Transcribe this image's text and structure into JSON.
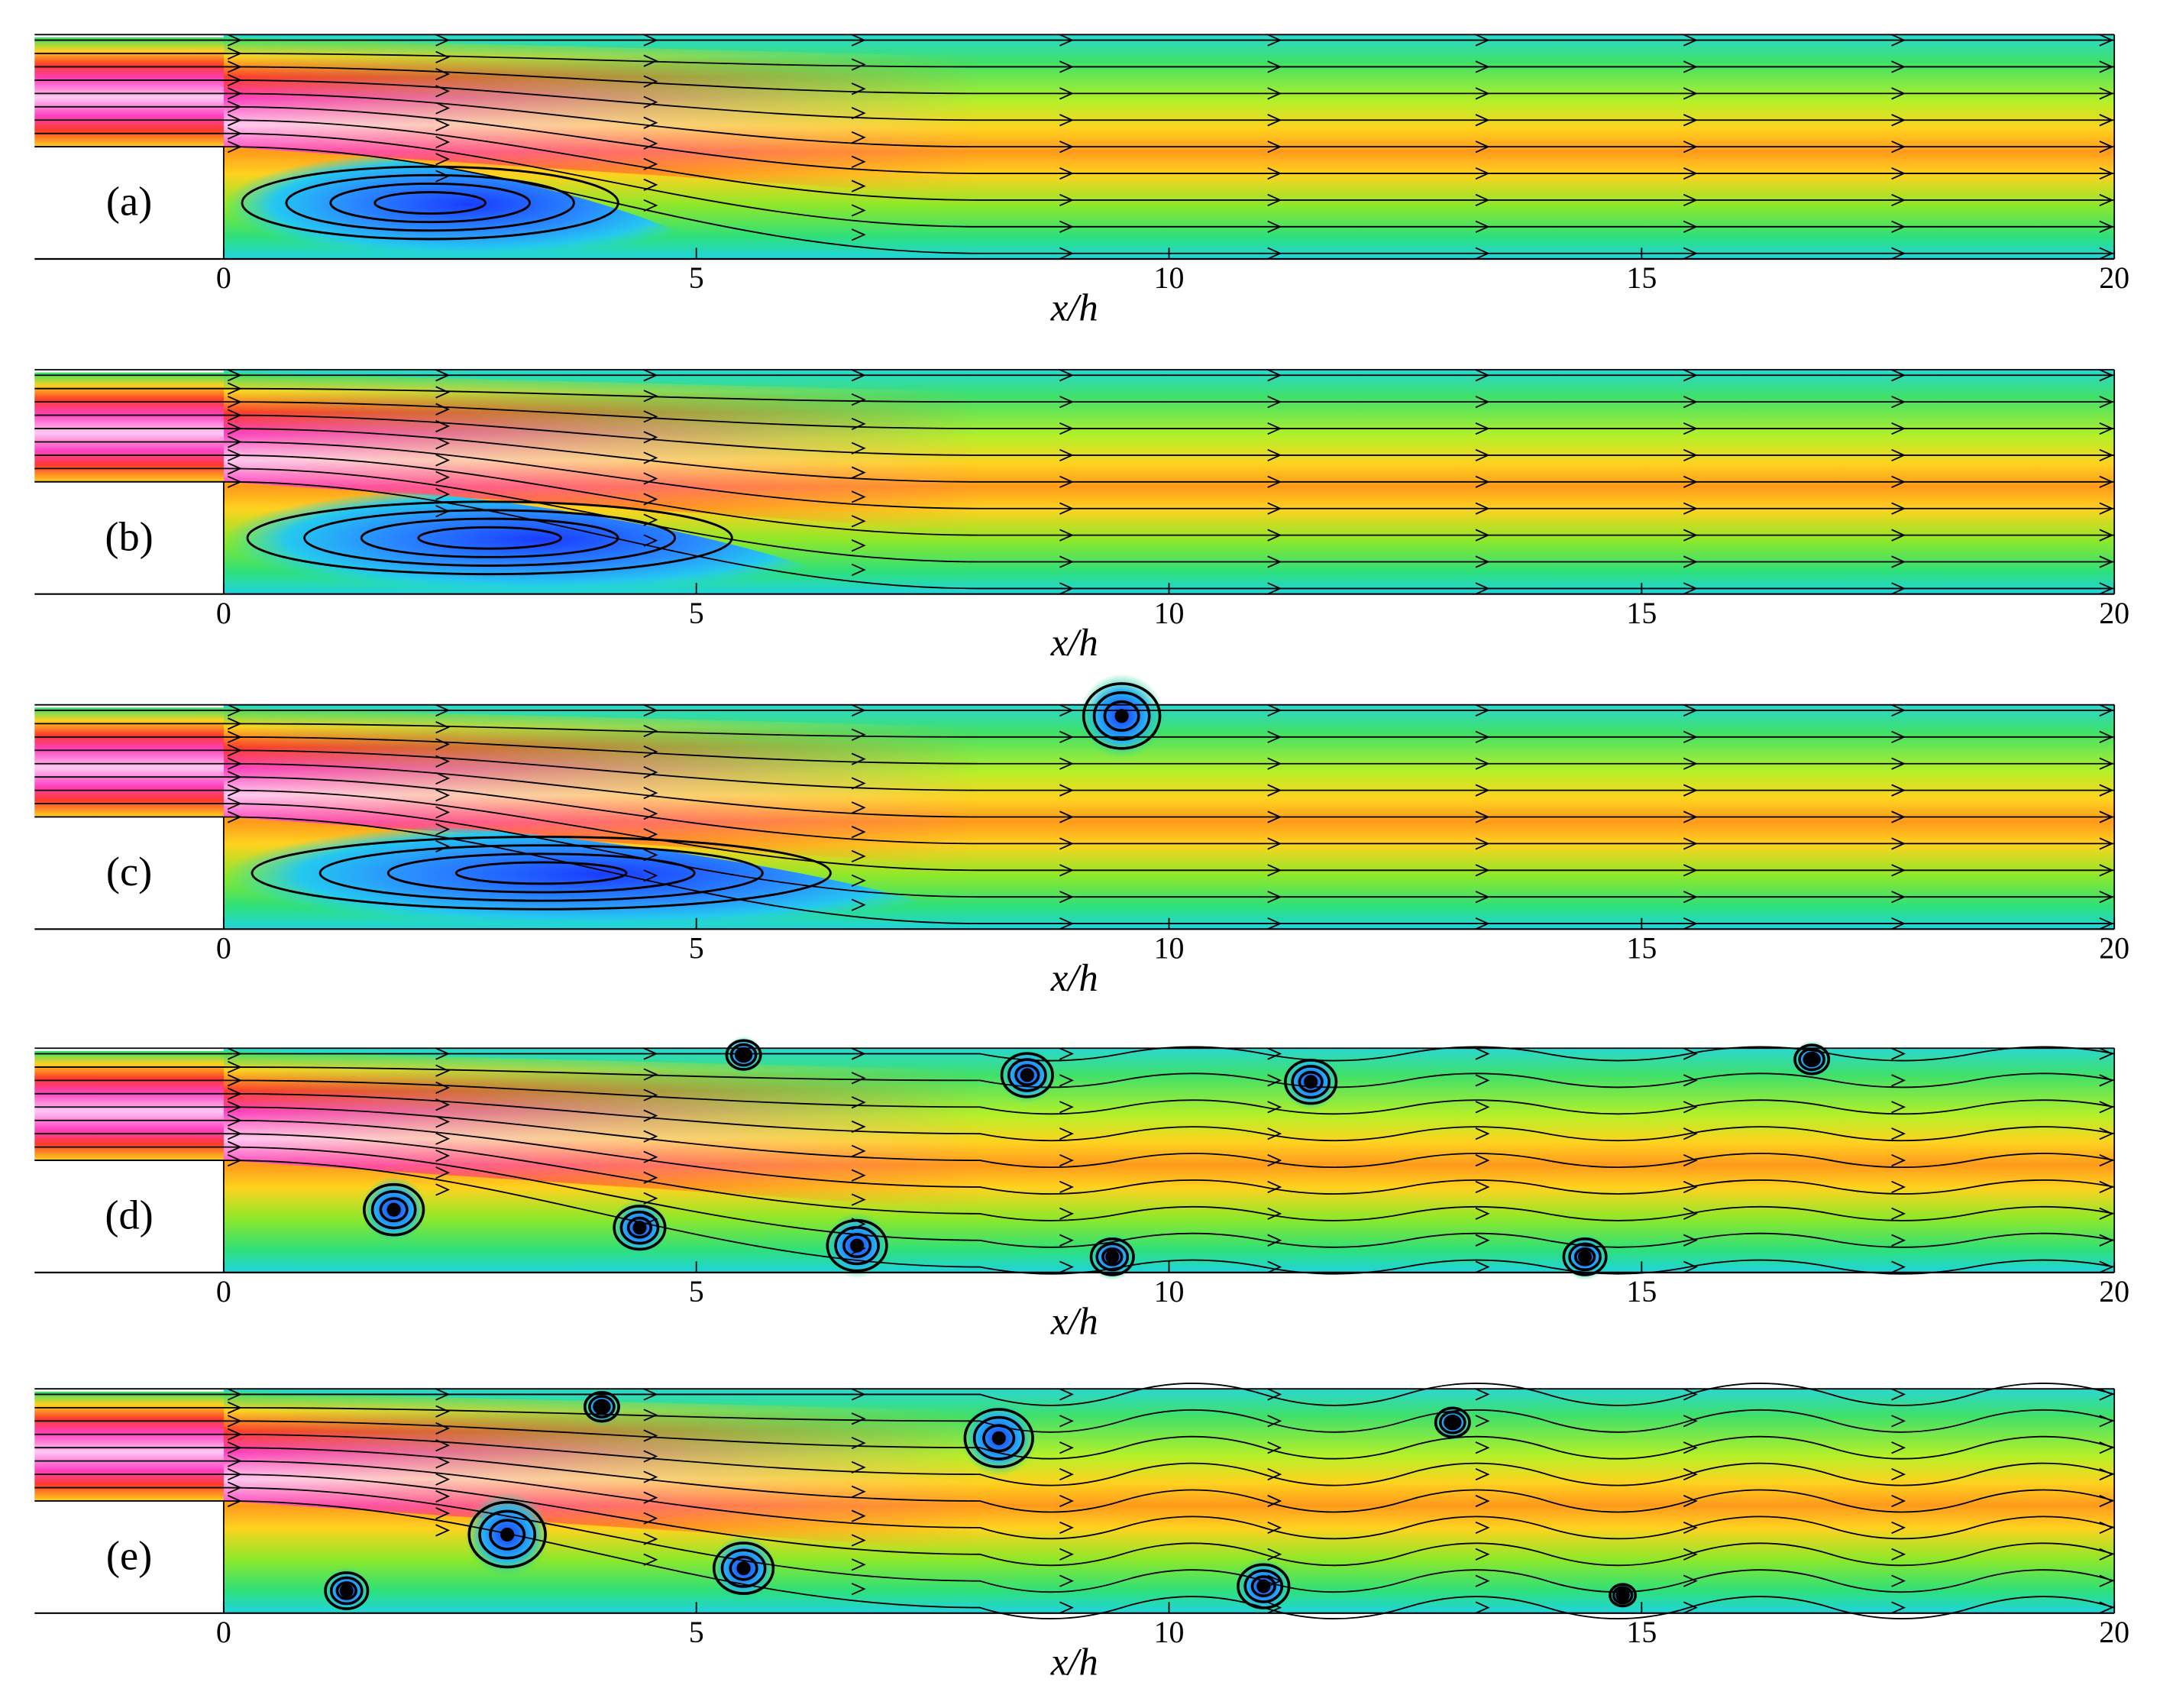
{
  "chart_data": [
    {
      "type": "flow",
      "annotation": "(a)",
      "xlabel": "x/h",
      "xlim": [
        -2,
        20
      ],
      "xticks": [
        0,
        5,
        10,
        15,
        20
      ]
    },
    {
      "type": "flow",
      "annotation": "(b)",
      "xlabel": "x/h",
      "xlim": [
        -2,
        20
      ],
      "xticks": [
        0,
        5,
        10,
        15,
        20
      ]
    },
    {
      "type": "flow",
      "annotation": "(c)",
      "xlabel": "x/h",
      "xlim": [
        -2,
        20
      ],
      "xticks": [
        0,
        5,
        10,
        15,
        20
      ]
    },
    {
      "type": "flow",
      "annotation": "(d)",
      "xlabel": "x/h",
      "xlim": [
        -2,
        20
      ],
      "xticks": [
        0,
        5,
        10,
        15,
        20
      ]
    },
    {
      "type": "flow",
      "annotation": "(e)",
      "xlabel": "x/h",
      "xlim": [
        -2,
        20
      ],
      "xticks": [
        0,
        5,
        10,
        15,
        20
      ]
    }
  ]
}
